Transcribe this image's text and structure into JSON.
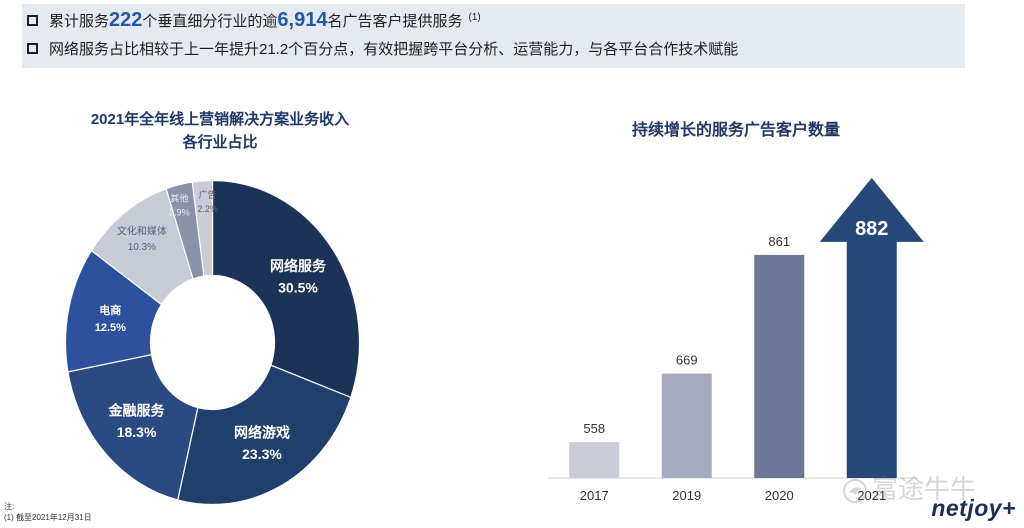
{
  "slide": {
    "bullets": {
      "line1": {
        "before": "累计服务",
        "num_industries": "222",
        "middle": "个垂直细分行业的逾",
        "num_clients": "6,914",
        "after": "名广告客户提供服务",
        "note_ref": "(1)"
      },
      "line2": "网络服务占比相较于上一年提升21.2个百分点，有效把握跨平台分析、运营能力，与各平台合作技术赋能"
    },
    "banner_color": "#e5e9f0",
    "highlight_color": "#2557a7",
    "title_color": "#1f3864"
  },
  "chart_data": [
    {
      "type": "pie",
      "donut": true,
      "title": [
        "2021年全年线上营销解决方案业务收入",
        "各行业占比"
      ],
      "labels": [
        "网络服务",
        "网络游戏",
        "金融服务",
        "电商",
        "文化和媒体",
        "其他",
        "广告"
      ],
      "values": [
        30.5,
        23.3,
        18.3,
        12.5,
        10.3,
        2.9,
        2.2
      ],
      "unit": "%",
      "colors": [
        "#1b3357",
        "#213f6d",
        "#2b4a82",
        "#2d519c",
        "#c7cbd6",
        "#8a91a8",
        "#c9ccd6"
      ],
      "label_colors": [
        "#ffffff",
        "#ffffff",
        "#ffffff",
        "#ffffff",
        "#5b6276",
        "#eef0f4",
        "#5b6276"
      ]
    },
    {
      "type": "bar",
      "title": "持续增长的服务广告客户数量",
      "categories": [
        "2017",
        "2019",
        "2020",
        "2021"
      ],
      "values": [
        558,
        669,
        861,
        882
      ],
      "ylim": [
        500,
        1000
      ],
      "grid": false,
      "colors": [
        "#c9cbd7",
        "#a5aabf",
        "#6e7798",
        "#26497a"
      ],
      "emphasis": {
        "category": "2021",
        "shape": "arrow"
      }
    }
  ],
  "footnote": {
    "label": "注:",
    "text": "(1) 截至2021年12月31日"
  },
  "branding": {
    "logo": "netjoy+",
    "watermark": "富途牛牛",
    "watermark_icon": "futu-logo-icon"
  }
}
